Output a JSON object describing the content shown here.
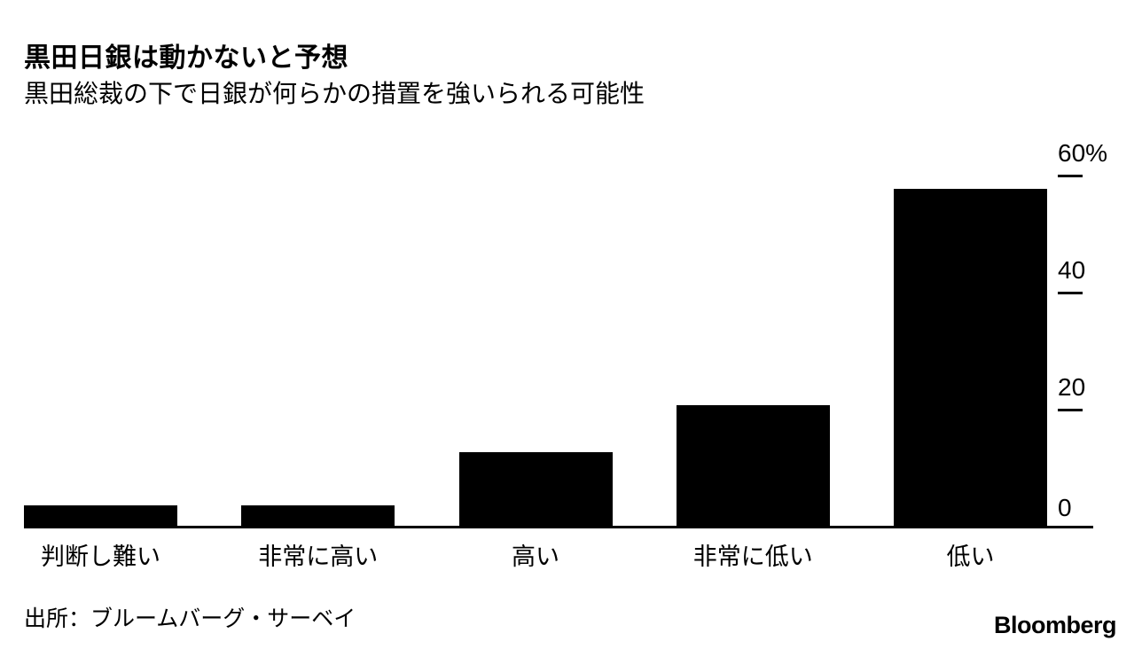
{
  "chart_data": {
    "type": "bar",
    "title": "黒田日銀は動かないと予想",
    "subtitle": "黒田総裁の下で日銀が何らかの措置を強いられる可能性",
    "categories": [
      "判断し難い",
      "非常に高い",
      "高い",
      "非常に低い",
      "低い"
    ],
    "values": [
      4,
      4,
      13,
      21,
      58
    ],
    "unit": "%",
    "ylim": [
      0,
      60
    ],
    "yticks": [
      {
        "label": "60%",
        "value": 60
      },
      {
        "label": "40",
        "value": 40
      },
      {
        "label": "20",
        "value": 20
      },
      {
        "label": "0",
        "value": 0
      }
    ],
    "bar_color": "#000000",
    "axis_side": "right",
    "grid": false,
    "legend": "none"
  },
  "footer": {
    "source": "出所：ブルームバーグ・サーベイ",
    "brand": "Bloomberg"
  }
}
